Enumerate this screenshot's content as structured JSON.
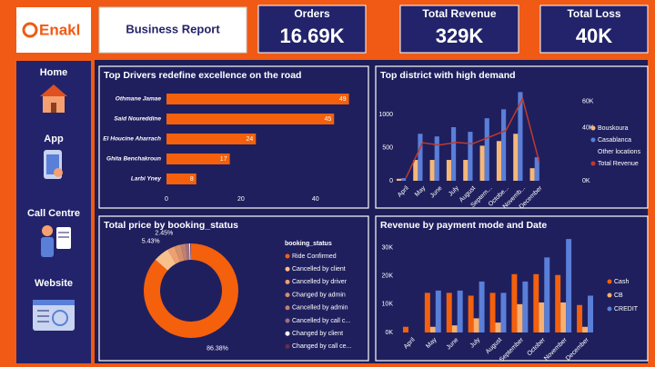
{
  "header": {
    "logo": "Enakl",
    "title": "Business Report",
    "kpis": [
      {
        "label": "Orders",
        "value": "16.69K"
      },
      {
        "label": "Total Revenue",
        "value": "329K"
      },
      {
        "label": "Total Loss",
        "value": "40K"
      }
    ]
  },
  "sidebar": {
    "items": [
      "Home",
      "App",
      "Call Centre",
      "Website"
    ]
  },
  "chart_data": [
    {
      "type": "hbar",
      "title": "Top Drivers redefine excellence on the road",
      "categories": [
        "Othmane Jamae",
        "Said Noureddine",
        "El Houcine Aharrach",
        "Ghita Benchakroun",
        "Larbi Yney"
      ],
      "values": [
        49,
        45,
        24,
        17,
        8
      ],
      "color": "#f4600c",
      "xlim": [
        0,
        53
      ],
      "xticks": [
        0,
        20,
        40
      ],
      "data_labels": true
    },
    {
      "type": "combo",
      "title": "Top district with high demand",
      "categories": [
        "April",
        "May",
        "June",
        "July",
        "August",
        "Septem...",
        "Octobe...",
        "Novemb...",
        "December"
      ],
      "series": [
        {
          "name": "Bouskoura",
          "kind": "bar",
          "color": "#f5b87a",
          "values": [
            30,
            315,
            315,
            315,
            315,
            530,
            600,
            710,
            190
          ]
        },
        {
          "name": "Casablanca",
          "kind": "bar",
          "color": "#5a7fd8",
          "values": [
            40,
            710,
            670,
            810,
            740,
            945,
            1080,
            1340,
            355
          ]
        },
        {
          "name": "Other locations",
          "kind": "bar",
          "color": "#1f1f5e",
          "values": [
            null,
            null,
            null,
            null,
            null,
            null,
            null,
            null,
            null
          ]
        },
        {
          "name": "Total Revenue",
          "kind": "line",
          "axis": "y2",
          "color": "#c0392b",
          "values": [
            2000,
            28700,
            27000,
            29000,
            28000,
            33000,
            38000,
            62000,
            14000
          ]
        }
      ],
      "ylim": [
        0,
        1400
      ],
      "yticks": [
        0,
        500,
        1000
      ],
      "y2lim": [
        0,
        70000
      ],
      "y2ticks": [
        {
          "value": 0,
          "label": "0K"
        },
        {
          "value": 40000,
          "label": "40K"
        },
        {
          "value": 60000,
          "label": "60K"
        }
      ]
    },
    {
      "type": "donut",
      "title": "Total price by booking_status",
      "legend_title": "booking_status",
      "categories": [
        "Ride Confirmed",
        "Cancelled by client",
        "Cancelled by driver",
        "Changed by admin",
        "Cancelled by admin",
        "Cancelled by call c...",
        "Changed by client",
        "Changed by call ce..."
      ],
      "values": [
        86.38,
        5.43,
        2.45,
        2.2,
        1.7,
        1.2,
        0.4,
        0.24
      ],
      "value_labels": [
        "86.38%",
        "5.43%",
        "2.45%",
        null,
        null,
        null,
        null,
        null
      ],
      "colors": [
        "#f4600c",
        "#f8c08a",
        "#f0a070",
        "#d4906a",
        "#c08070",
        "#a07080",
        "#ffffff",
        "#6a2a4a"
      ]
    },
    {
      "type": "groupbar",
      "title": "Revenue by payment mode and Date",
      "categories": [
        "April",
        "May",
        "June",
        "July",
        "August",
        "September",
        "October",
        "November",
        "December"
      ],
      "series": [
        {
          "name": "Cash",
          "color": "#f4600c",
          "values": [
            2000,
            14000,
            14000,
            13000,
            14000,
            20600,
            20600,
            20300,
            9700
          ]
        },
        {
          "name": "CB",
          "color": "#f8b070",
          "values": [
            0,
            2000,
            2500,
            5000,
            3500,
            10000,
            10600,
            10600,
            2000
          ]
        },
        {
          "name": "CREDIT",
          "color": "#5a7fd8",
          "values": [
            0,
            14800,
            14800,
            18000,
            14000,
            18000,
            26500,
            33000,
            13000
          ]
        }
      ],
      "ylim": [
        0,
        34000
      ],
      "yticks": [
        {
          "value": 0,
          "label": "0K"
        },
        {
          "value": 10000,
          "label": "10K"
        },
        {
          "value": 20000,
          "label": "20K"
        },
        {
          "value": 30000,
          "label": "30K"
        }
      ]
    }
  ]
}
